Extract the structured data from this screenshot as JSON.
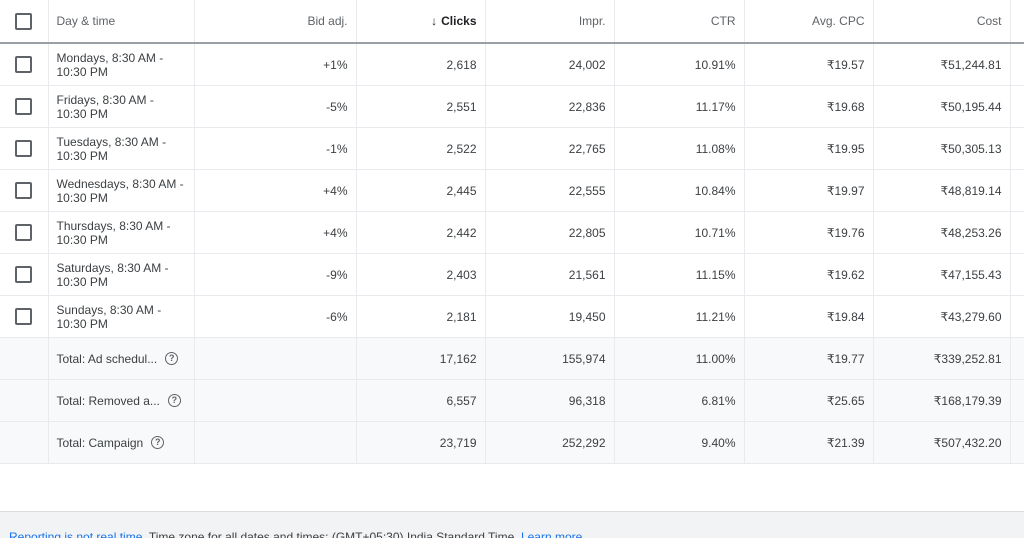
{
  "headers": {
    "day_time": "Day & time",
    "bid_adj": "Bid adj.",
    "clicks": "Clicks",
    "impr": "Impr.",
    "ctr": "CTR",
    "avg_cpc": "Avg. CPC",
    "cost": "Cost",
    "sort_icon": "↓"
  },
  "rows": [
    {
      "day": "Mondays, 8:30 AM - 10:30 PM",
      "bid": "+1%",
      "clicks": "2,618",
      "impr": "24,002",
      "ctr": "10.91%",
      "cpc": "₹19.57",
      "cost": "₹51,244.81"
    },
    {
      "day": "Fridays, 8:30 AM - 10:30 PM",
      "bid": "-5%",
      "clicks": "2,551",
      "impr": "22,836",
      "ctr": "11.17%",
      "cpc": "₹19.68",
      "cost": "₹50,195.44"
    },
    {
      "day": "Tuesdays, 8:30 AM - 10:30 PM",
      "bid": "-1%",
      "clicks": "2,522",
      "impr": "22,765",
      "ctr": "11.08%",
      "cpc": "₹19.95",
      "cost": "₹50,305.13"
    },
    {
      "day": "Wednesdays, 8:30 AM - 10:30 PM",
      "bid": "+4%",
      "clicks": "2,445",
      "impr": "22,555",
      "ctr": "10.84%",
      "cpc": "₹19.97",
      "cost": "₹48,819.14"
    },
    {
      "day": "Thursdays, 8:30 AM - 10:30 PM",
      "bid": "+4%",
      "clicks": "2,442",
      "impr": "22,805",
      "ctr": "10.71%",
      "cpc": "₹19.76",
      "cost": "₹48,253.26"
    },
    {
      "day": "Saturdays, 8:30 AM - 10:30 PM",
      "bid": "-9%",
      "clicks": "2,403",
      "impr": "21,561",
      "ctr": "11.15%",
      "cpc": "₹19.62",
      "cost": "₹47,155.43"
    },
    {
      "day": "Sundays, 8:30 AM - 10:30 PM",
      "bid": "-6%",
      "clicks": "2,181",
      "impr": "19,450",
      "ctr": "11.21%",
      "cpc": "₹19.84",
      "cost": "₹43,279.60"
    }
  ],
  "totals": [
    {
      "label": "Total: Ad schedul...",
      "clicks": "17,162",
      "impr": "155,974",
      "ctr": "11.00%",
      "cpc": "₹19.77",
      "cost": "₹339,252.81"
    },
    {
      "label": "Total: Removed a...",
      "clicks": "6,557",
      "impr": "96,318",
      "ctr": "6.81%",
      "cpc": "₹25.65",
      "cost": "₹168,179.39"
    },
    {
      "label": "Total: Campaign",
      "clicks": "23,719",
      "impr": "252,292",
      "ctr": "9.40%",
      "cpc": "₹21.39",
      "cost": "₹507,432.20"
    }
  ],
  "help_glyph": "?",
  "footer": {
    "realtime_link": "Reporting is not real time.",
    "timezone_text": "Time zone for all dates and times: (GMT+05:30) India Standard Time.",
    "learn_more": "Learn more"
  }
}
